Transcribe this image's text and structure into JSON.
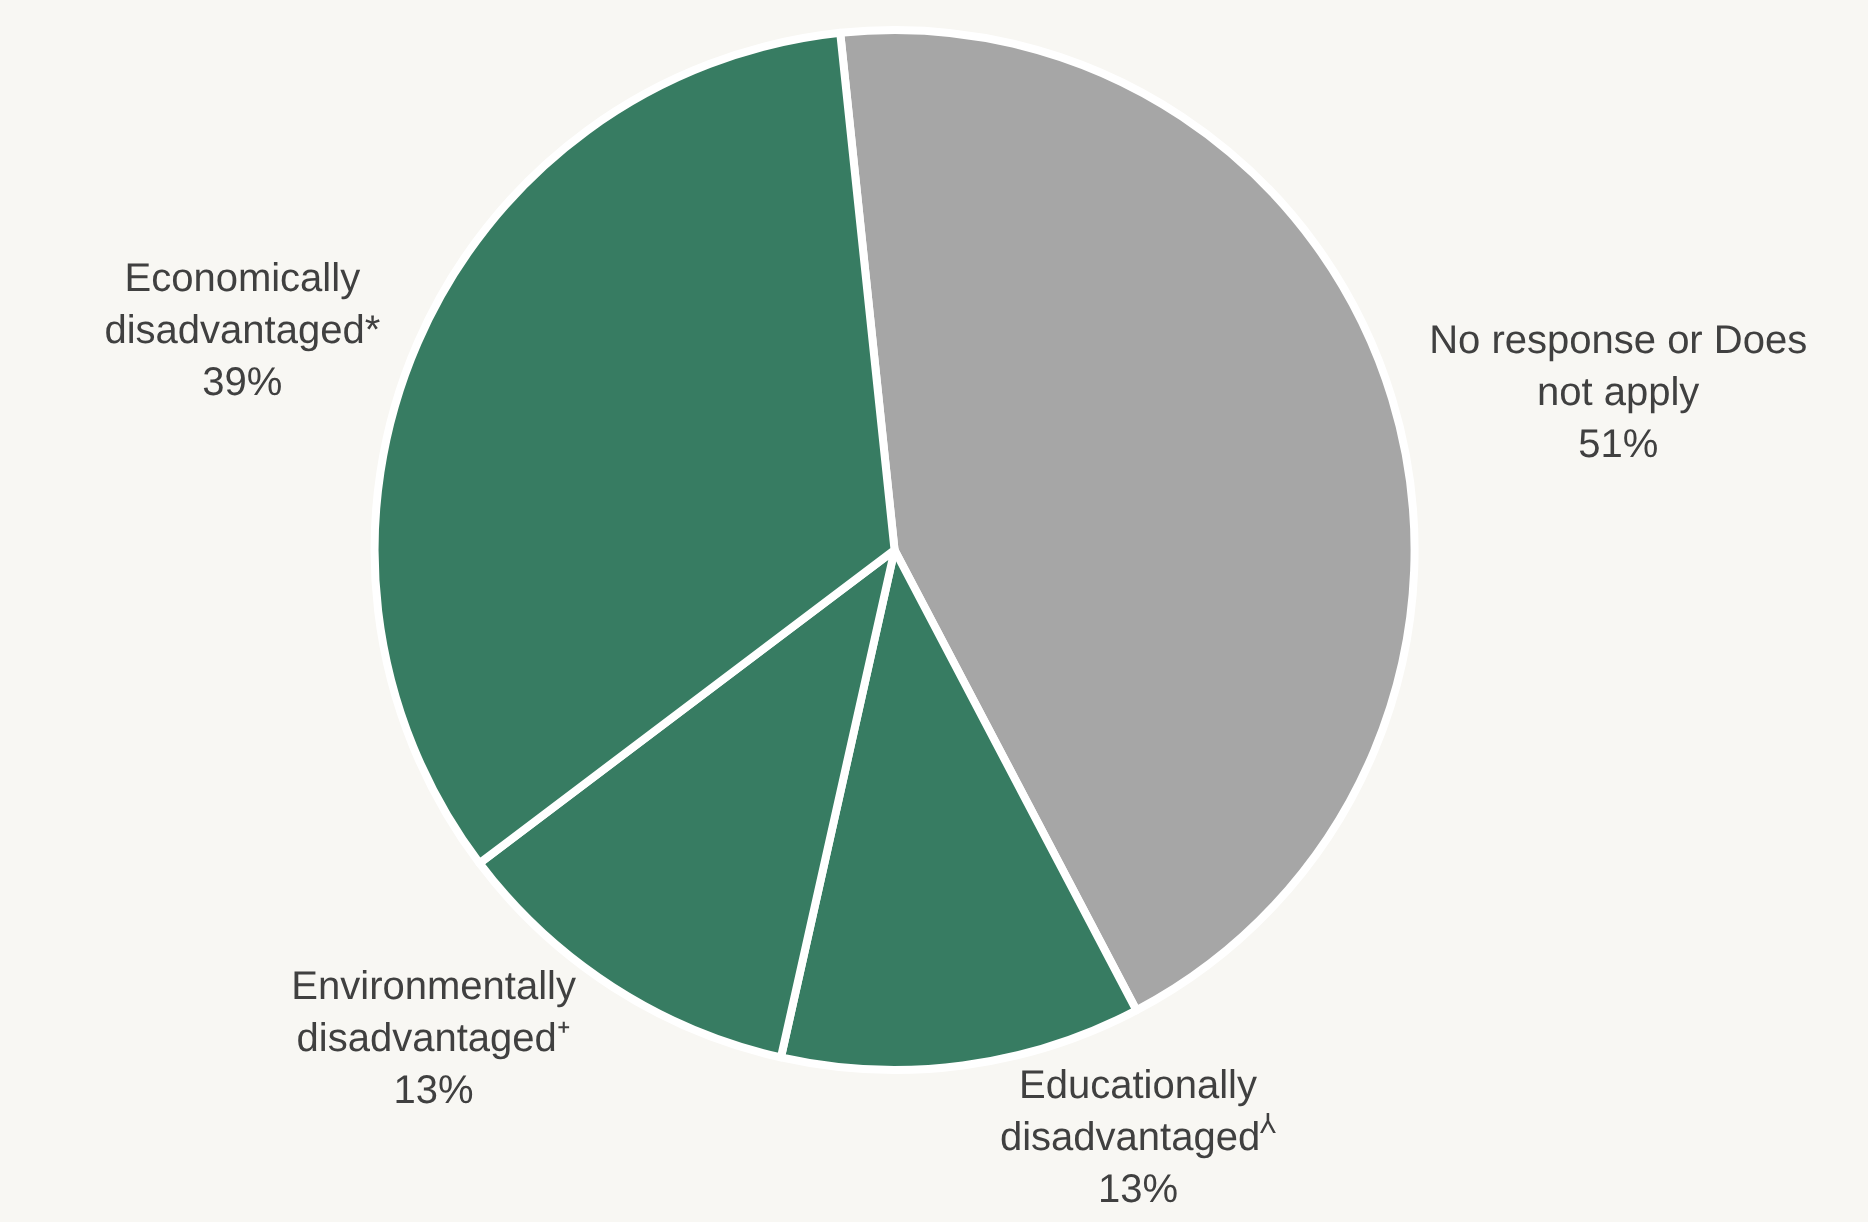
{
  "chart_data": {
    "type": "pie",
    "categories": [
      "No response or Does not apply",
      "Educationally disadvantaged$^{⅄}$",
      "Environmentally disadvantaged⁺",
      "Economically disadvantaged*"
    ],
    "values": [
      51,
      13,
      13,
      39
    ],
    "value_labels": [
      "51%",
      "13%",
      "13%",
      "39%"
    ],
    "colors": [
      "#a6a6a6",
      "#377c62",
      "#377c62",
      "#377c62"
    ]
  }
}
